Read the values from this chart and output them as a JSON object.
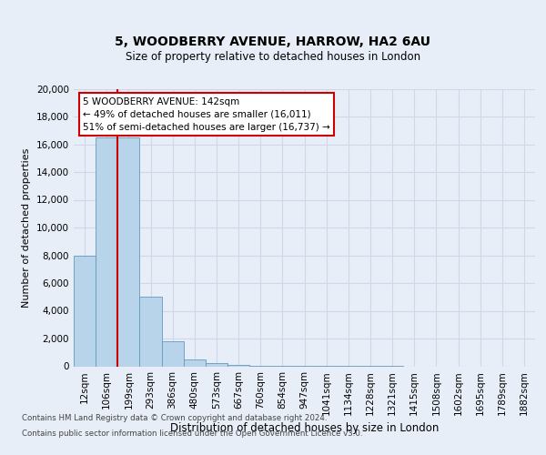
{
  "title_line1": "5, WOODBERRY AVENUE, HARROW, HA2 6AU",
  "title_line2": "Size of property relative to detached houses in London",
  "xlabel": "Distribution of detached houses by size in London",
  "ylabel": "Number of detached properties",
  "categories": [
    "12sqm",
    "106sqm",
    "199sqm",
    "293sqm",
    "386sqm",
    "480sqm",
    "573sqm",
    "667sqm",
    "760sqm",
    "854sqm",
    "947sqm",
    "1041sqm",
    "1134sqm",
    "1228sqm",
    "1321sqm",
    "1415sqm",
    "1508sqm",
    "1602sqm",
    "1695sqm",
    "1789sqm",
    "1882sqm"
  ],
  "values": [
    8000,
    16500,
    16500,
    5000,
    1800,
    500,
    200,
    100,
    50,
    20,
    10,
    5,
    2,
    1,
    1,
    0,
    0,
    0,
    0,
    0,
    0
  ],
  "bar_color": "#b8d4ea",
  "bar_edge_color": "#6699bb",
  "red_line_color": "#cc0000",
  "red_line_x": 1.5,
  "annotation_text": "5 WOODBERRY AVENUE: 142sqm\n← 49% of detached houses are smaller (16,011)\n51% of semi-detached houses are larger (16,737) →",
  "annotation_box_facecolor": "#ffffff",
  "annotation_box_edgecolor": "#cc0000",
  "ylim": [
    0,
    20000
  ],
  "yticks": [
    0,
    2000,
    4000,
    6000,
    8000,
    10000,
    12000,
    14000,
    16000,
    18000,
    20000
  ],
  "background_color": "#e8eef8",
  "grid_color": "#d0d8e8",
  "footer_line1": "Contains HM Land Registry data © Crown copyright and database right 2024.",
  "footer_line2": "Contains public sector information licensed under the Open Government Licence v3.0."
}
